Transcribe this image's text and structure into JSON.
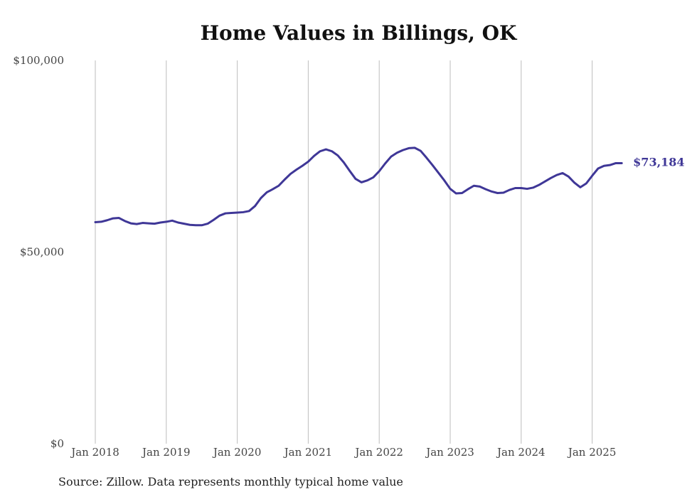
{
  "chart_data": {
    "type": "line",
    "title": "Home Values in Billings, OK",
    "source": "Source: Zillow. Data represents monthly typical home value",
    "xlabel": "",
    "ylabel": "",
    "ylim": [
      0,
      100000
    ],
    "y_ticks": [
      {
        "value": 0,
        "label": "$0"
      },
      {
        "value": 50000,
        "label": "$50,000"
      },
      {
        "value": 100000,
        "label": "$100,000"
      }
    ],
    "x_ticks": [
      {
        "date": "2018-01",
        "label": "Jan 2018"
      },
      {
        "date": "2019-01",
        "label": "Jan 2019"
      },
      {
        "date": "2020-01",
        "label": "Jan 2020"
      },
      {
        "date": "2021-01",
        "label": "Jan 2021"
      },
      {
        "date": "2022-01",
        "label": "Jan 2022"
      },
      {
        "date": "2023-01",
        "label": "Jan 2023"
      },
      {
        "date": "2024-01",
        "label": "Jan 2024"
      },
      {
        "date": "2025-01",
        "label": "Jan 2025"
      }
    ],
    "grid": "vertical",
    "line_color": "#3f3797",
    "end_label": "$73,184",
    "series": [
      {
        "x": [
          "2018-01",
          "2018-02",
          "2018-03",
          "2018-04",
          "2018-05",
          "2018-06",
          "2018-07",
          "2018-08",
          "2018-09",
          "2018-10",
          "2018-11",
          "2018-12",
          "2019-01",
          "2019-02",
          "2019-03",
          "2019-04",
          "2019-05",
          "2019-06",
          "2019-07",
          "2019-08",
          "2019-09",
          "2019-10",
          "2019-11",
          "2019-12",
          "2020-01",
          "2020-02",
          "2020-03",
          "2020-04",
          "2020-05",
          "2020-06",
          "2020-07",
          "2020-08",
          "2020-09",
          "2020-10",
          "2020-11",
          "2020-12",
          "2021-01",
          "2021-02",
          "2021-03",
          "2021-04",
          "2021-05",
          "2021-06",
          "2021-07",
          "2021-08",
          "2021-09",
          "2021-10",
          "2021-11",
          "2021-12",
          "2022-01",
          "2022-02",
          "2022-03",
          "2022-04",
          "2022-05",
          "2022-06",
          "2022-07",
          "2022-08",
          "2022-09",
          "2022-10",
          "2022-11",
          "2022-12",
          "2023-01",
          "2023-02",
          "2023-03",
          "2023-04",
          "2023-05",
          "2023-06",
          "2023-07",
          "2023-08",
          "2023-09",
          "2023-10",
          "2023-11",
          "2023-12",
          "2024-01",
          "2024-02",
          "2024-03",
          "2024-04",
          "2024-05",
          "2024-06",
          "2024-07",
          "2024-08",
          "2024-09",
          "2024-10",
          "2024-11",
          "2024-12",
          "2025-01",
          "2025-02",
          "2025-03",
          "2025-04",
          "2025-05",
          "2025-06"
        ],
        "values": [
          57800,
          57900,
          58300,
          58800,
          58900,
          58100,
          57500,
          57300,
          57600,
          57500,
          57400,
          57700,
          57900,
          58200,
          57700,
          57400,
          57100,
          57000,
          57000,
          57400,
          58400,
          59500,
          60100,
          60200,
          60300,
          60400,
          60700,
          62000,
          64100,
          65600,
          66400,
          67300,
          68900,
          70400,
          71500,
          72500,
          73600,
          75100,
          76300,
          76800,
          76300,
          75200,
          73400,
          71200,
          69100,
          68200,
          68700,
          69500,
          71100,
          73100,
          74900,
          75900,
          76600,
          77100,
          77200,
          76400,
          74600,
          72700,
          70700,
          68700,
          66500,
          65300,
          65400,
          66400,
          67300,
          67100,
          66400,
          65800,
          65400,
          65500,
          66200,
          66700,
          66700,
          66500,
          66800,
          67500,
          68400,
          69300,
          70100,
          70600,
          69700,
          68100,
          66900,
          67900,
          69900,
          71800,
          72500,
          72700,
          73200,
          73184
        ]
      }
    ]
  }
}
